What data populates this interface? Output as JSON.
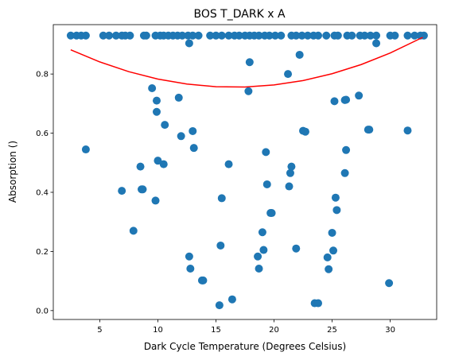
{
  "chart_data": {
    "type": "scatter",
    "title": "BOS T_DARK x A",
    "xlabel": "Dark Cycle Temperature (Degrees Celsius)",
    "ylabel": "Absorption ()",
    "xlim": [
      1.0,
      34.0
    ],
    "ylim": [
      -0.03,
      0.967
    ],
    "xticks": [
      "5",
      "10",
      "15",
      "20",
      "25",
      "30"
    ],
    "xtick_values": [
      5,
      10,
      15,
      20,
      25,
      30
    ],
    "yticks": [
      "0.0",
      "0.2",
      "0.4",
      "0.6",
      "0.8"
    ],
    "ytick_values": [
      0.0,
      0.2,
      0.4,
      0.6,
      0.8
    ],
    "grid": false,
    "colors": {
      "points": "#1f77b4",
      "fit": "#ff0000",
      "axes": "#000000"
    },
    "series": [
      {
        "kind": "points",
        "x": [
          2.5,
          3.0,
          3.4,
          3.8,
          5.3,
          5.8,
          6.4,
          6.9,
          7.2,
          7.6,
          8.8,
          9.0,
          9.8,
          10.2,
          10.5,
          10.9,
          11.3,
          11.7,
          12.1,
          12.6,
          13.0,
          13.5,
          14.5,
          15.0,
          15.5,
          16.1,
          16.6,
          17.0,
          17.5,
          17.9,
          18.3,
          18.7,
          19.2,
          19.6,
          20.1,
          20.6,
          21.5,
          21.9,
          22.4,
          22.9,
          23.4,
          23.8,
          24.5,
          25.2,
          25.5,
          26.3,
          26.7,
          27.4,
          27.8,
          28.3,
          28.8,
          30.0,
          30.4,
          31.5,
          32.1,
          32.6,
          32.9,
          3.8,
          6.9,
          7.9,
          8.5,
          8.6,
          8.7,
          9.5,
          9.8,
          9.9,
          9.9,
          10.0,
          10.5,
          10.6,
          11.8,
          12.0,
          12.7,
          12.7,
          12.8,
          13.0,
          13.1,
          13.8,
          13.9,
          15.3,
          15.4,
          15.5,
          16.1,
          16.4,
          17.8,
          17.9,
          18.6,
          18.7,
          19.0,
          19.1,
          19.3,
          19.4,
          19.7,
          19.8,
          21.2,
          21.3,
          21.4,
          21.5,
          21.9,
          22.2,
          22.5,
          22.7,
          23.5,
          23.8,
          24.6,
          24.7,
          25.0,
          25.1,
          25.2,
          25.3,
          25.4,
          26.1,
          26.1,
          26.2,
          26.2,
          27.3,
          28.1,
          28.2,
          28.8,
          29.9,
          31.5
        ],
        "y": [
          0.93,
          0.93,
          0.93,
          0.93,
          0.93,
          0.93,
          0.93,
          0.93,
          0.93,
          0.93,
          0.93,
          0.93,
          0.93,
          0.93,
          0.93,
          0.93,
          0.93,
          0.93,
          0.93,
          0.93,
          0.93,
          0.93,
          0.93,
          0.93,
          0.93,
          0.93,
          0.93,
          0.93,
          0.93,
          0.93,
          0.93,
          0.93,
          0.93,
          0.93,
          0.93,
          0.93,
          0.93,
          0.93,
          0.93,
          0.93,
          0.93,
          0.93,
          0.93,
          0.93,
          0.93,
          0.93,
          0.93,
          0.93,
          0.93,
          0.93,
          0.93,
          0.93,
          0.93,
          0.93,
          0.93,
          0.93,
          0.93,
          0.545,
          0.405,
          0.27,
          0.487,
          0.41,
          0.41,
          0.752,
          0.372,
          0.71,
          0.672,
          0.507,
          0.495,
          0.628,
          0.72,
          0.59,
          0.904,
          0.183,
          0.142,
          0.607,
          0.55,
          0.102,
          0.102,
          0.018,
          0.22,
          0.38,
          0.495,
          0.038,
          0.742,
          0.84,
          0.183,
          0.142,
          0.265,
          0.205,
          0.536,
          0.427,
          0.33,
          0.33,
          0.8,
          0.42,
          0.465,
          0.487,
          0.21,
          0.865,
          0.608,
          0.605,
          0.025,
          0.025,
          0.18,
          0.14,
          0.263,
          0.203,
          0.708,
          0.382,
          0.34,
          0.712,
          0.465,
          0.543,
          0.713,
          0.727,
          0.612,
          0.612,
          0.904,
          0.093,
          0.609
        ]
      },
      {
        "kind": "fit",
        "x": [
          2.5,
          5,
          7.5,
          10,
          12.5,
          15,
          17.5,
          20,
          22.5,
          25,
          27.5,
          30,
          32.8
        ],
        "y": [
          0.882,
          0.841,
          0.808,
          0.783,
          0.766,
          0.757,
          0.756,
          0.763,
          0.778,
          0.801,
          0.832,
          0.871,
          0.924
        ]
      }
    ]
  }
}
